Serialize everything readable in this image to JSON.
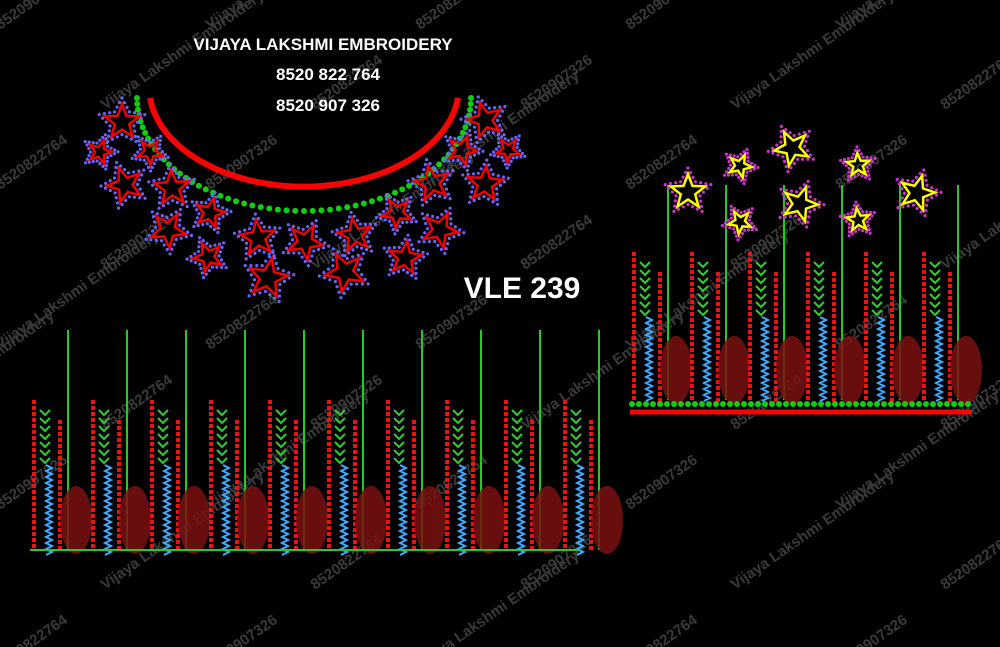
{
  "header": {
    "title": "VIJAYA LAKSHMI EMBROIDERY",
    "phones": [
      "8520 822 764",
      "8520 907 326"
    ]
  },
  "design_code": "VLE 239",
  "watermark": {
    "texts": [
      "Vijaya Lakshmi Embroidery",
      "8520822764",
      "8520907326"
    ]
  }
}
